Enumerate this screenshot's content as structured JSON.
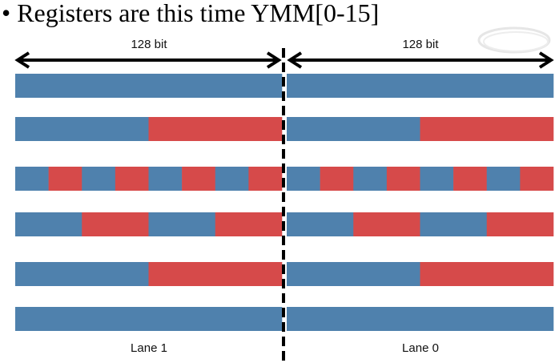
{
  "title": "Registers are this time YMM[0-15]",
  "bullet": "•",
  "labels": {
    "width_left": "128 bit",
    "width_right": "128 bit",
    "lane_left": "Lane 1",
    "lane_right": "Lane 0"
  },
  "colors": {
    "blue": "#4f81ad",
    "red": "#d64a4a",
    "black": "#000000"
  },
  "logo_icon": "intel-logo-watermark",
  "registers": [
    {
      "element_count": 2
    },
    {
      "element_count": 4
    },
    {
      "element_count": 16
    },
    {
      "element_count": 8
    },
    {
      "element_count": 4
    },
    {
      "element_count": 2
    }
  ]
}
